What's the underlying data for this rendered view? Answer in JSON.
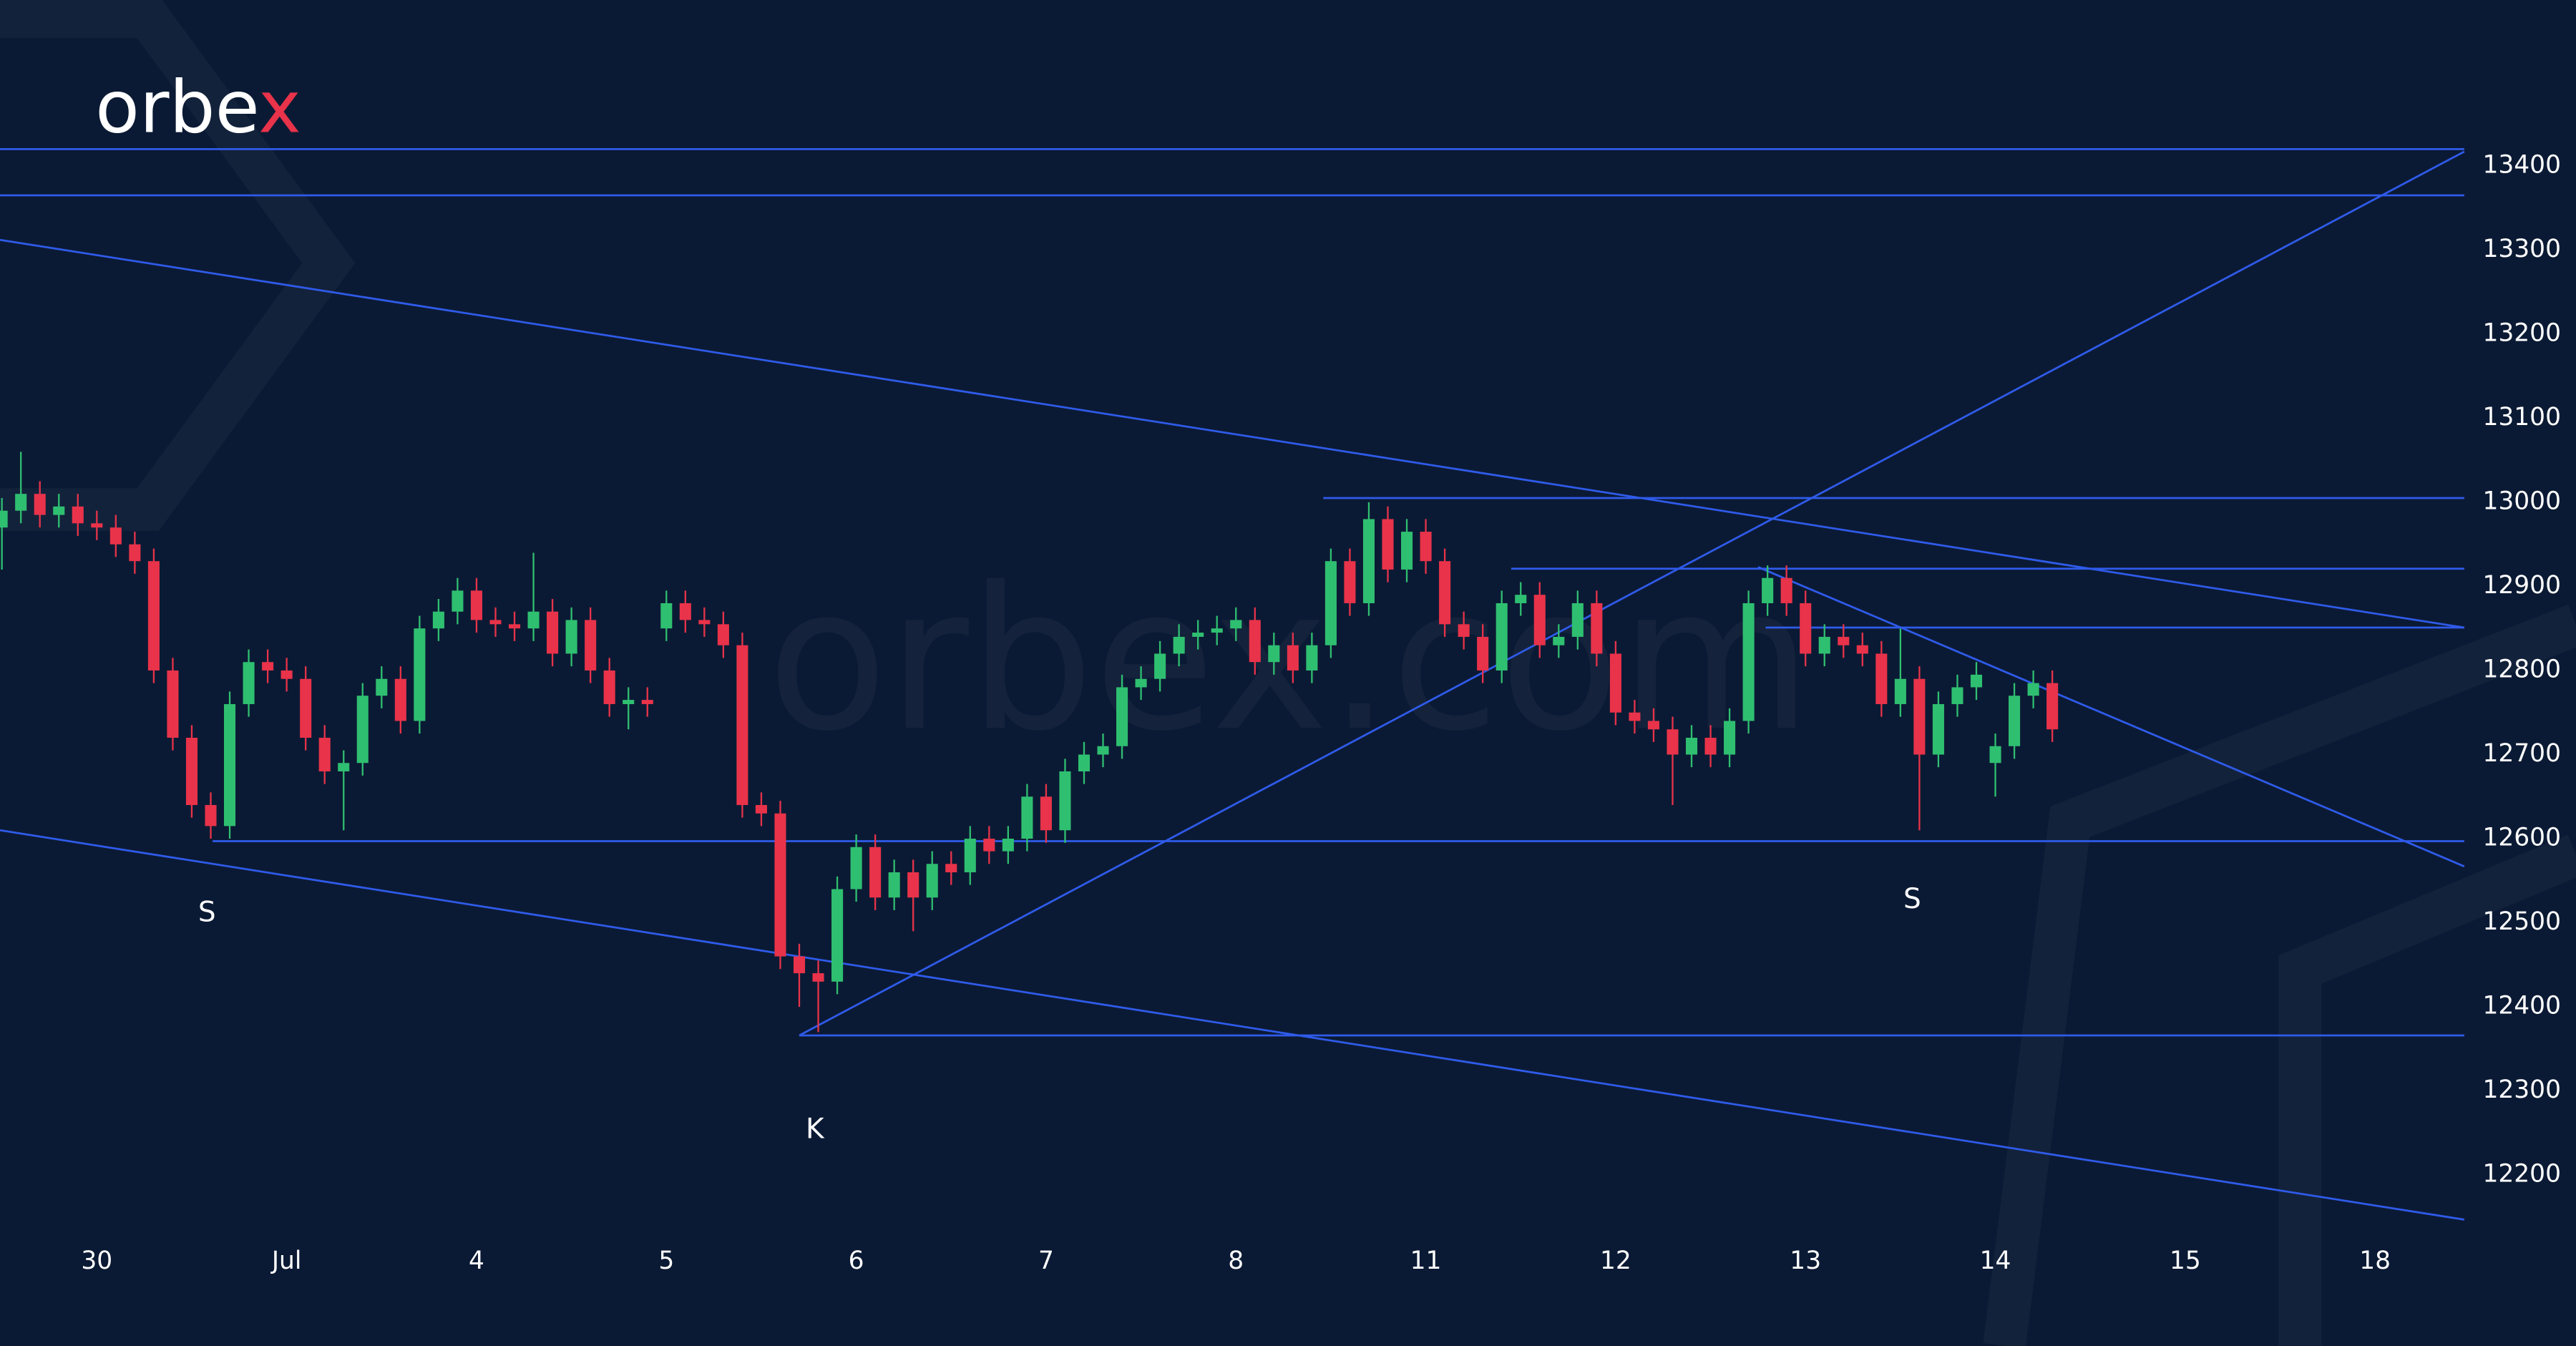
{
  "logo": "orbex",
  "watermark": "orbex.com",
  "chart_data": {
    "type": "candlestick",
    "xlim": [
      -0.51,
      12.47
    ],
    "ylim": [
      11997,
      13597
    ],
    "xticks": [
      {
        "value": 0,
        "label": "30"
      },
      {
        "value": 1,
        "label": "Jul"
      },
      {
        "value": 2,
        "label": "4"
      },
      {
        "value": 3,
        "label": "5"
      },
      {
        "value": 4,
        "label": "6"
      },
      {
        "value": 5,
        "label": "7"
      },
      {
        "value": 6,
        "label": "8"
      },
      {
        "value": 7,
        "label": "11"
      },
      {
        "value": 8,
        "label": "12"
      },
      {
        "value": 9,
        "label": "13"
      },
      {
        "value": 10,
        "label": "14"
      },
      {
        "value": 11,
        "label": "15"
      },
      {
        "value": 12,
        "label": "18"
      }
    ],
    "yticks": [
      12200,
      12300,
      12400,
      12500,
      12600,
      12700,
      12800,
      12900,
      13000,
      13100,
      13200,
      13300,
      13400
    ],
    "up_color": "#2fbf71",
    "down_color": "#e8334a",
    "line_color": "#2f5bea",
    "x": [
      -0.5,
      -0.4,
      -0.3,
      -0.2,
      -0.1,
      0,
      0.1,
      0.2,
      0.3,
      0.4,
      0.5,
      0.6,
      0.7,
      0.8,
      0.9,
      1,
      1.1,
      1.2,
      1.3,
      1.4,
      1.5,
      1.6,
      1.7,
      1.8,
      1.9,
      2,
      2.1,
      2.2,
      2.3,
      2.4,
      2.5,
      2.6,
      2.7,
      2.8,
      2.9,
      3,
      3.1,
      3.2,
      3.3,
      3.4,
      3.5,
      3.6,
      3.7,
      3.8,
      3.9,
      4,
      4.1,
      4.2,
      4.3,
      4.4,
      4.5,
      4.6,
      4.7,
      4.8,
      4.9,
      5,
      5.1,
      5.2,
      5.3,
      5.4,
      5.5,
      5.6,
      5.7,
      5.8,
      5.9,
      6,
      6.1,
      6.2,
      6.3,
      6.4,
      6.5,
      6.6,
      6.7,
      6.8,
      6.9,
      7,
      7.1,
      7.2,
      7.3,
      7.4,
      7.5,
      7.6,
      7.7,
      7.8,
      7.9,
      8,
      8.1,
      8.2,
      8.3,
      8.4,
      8.5,
      8.6,
      8.7,
      8.8,
      8.9,
      9,
      9.1,
      9.2,
      9.3,
      9.4,
      9.5,
      9.6,
      9.7,
      9.8,
      9.9,
      10,
      10.1,
      10.2,
      10.3
    ],
    "open": [
      12970,
      12990,
      13010,
      12985,
      12995,
      12975,
      12970,
      12950,
      12930,
      12800,
      12720,
      12640,
      12615,
      12760,
      12810,
      12800,
      12790,
      12720,
      12680,
      12690,
      12770,
      12790,
      12740,
      12850,
      12870,
      12895,
      12860,
      12855,
      12850,
      12870,
      12820,
      12860,
      12800,
      12760,
      12765,
      12850,
      12880,
      12860,
      12855,
      12830,
      12640,
      12630,
      12460,
      12440,
      12430,
      12540,
      12590,
      12530,
      12560,
      12530,
      12570,
      12560,
      12600,
      12585,
      12600,
      12650,
      12610,
      12680,
      12700,
      12710,
      12780,
      12790,
      12820,
      12840,
      12845,
      12850,
      12860,
      12810,
      12830,
      12800,
      12830,
      12930,
      12880,
      12980,
      12920,
      12965,
      12930,
      12855,
      12840,
      12800,
      12880,
      12890,
      12830,
      12840,
      12880,
      12820,
      12750,
      12740,
      12730,
      12700,
      12720,
      12700,
      12740,
      12880,
      12910,
      12880,
      12820,
      12840,
      12830,
      12820,
      12760,
      12790,
      12700,
      12760,
      12780,
      12690,
      12710,
      12770,
      12785
    ],
    "high": [
      13005,
      13060,
      13025,
      13010,
      13010,
      12990,
      12985,
      12965,
      12945,
      12815,
      12735,
      12655,
      12775,
      12825,
      12825,
      12815,
      12805,
      12735,
      12705,
      12785,
      12805,
      12805,
      12865,
      12885,
      12910,
      12910,
      12875,
      12870,
      12940,
      12885,
      12875,
      12875,
      12815,
      12780,
      12780,
      12895,
      12895,
      12875,
      12870,
      12845,
      12655,
      12645,
      12475,
      12455,
      12555,
      12605,
      12605,
      12575,
      12575,
      12585,
      12585,
      12615,
      12615,
      12615,
      12665,
      12665,
      12695,
      12715,
      12725,
      12795,
      12805,
      12835,
      12855,
      12860,
      12865,
      12875,
      12875,
      12845,
      12845,
      12845,
      12945,
      12945,
      13000,
      12995,
      12980,
      12980,
      12945,
      12870,
      12855,
      12895,
      12905,
      12905,
      12855,
      12895,
      12895,
      12835,
      12765,
      12755,
      12745,
      12735,
      12735,
      12755,
      12895,
      12925,
      12925,
      12895,
      12855,
      12855,
      12845,
      12835,
      12850,
      12805,
      12775,
      12795,
      12810,
      12725,
      12785,
      12800,
      12800
    ],
    "low": [
      12920,
      12975,
      12970,
      12970,
      12960,
      12955,
      12935,
      12915,
      12785,
      12705,
      12625,
      12600,
      12600,
      12745,
      12785,
      12775,
      12705,
      12665,
      12610,
      12675,
      12755,
      12725,
      12725,
      12835,
      12855,
      12845,
      12840,
      12835,
      12835,
      12805,
      12805,
      12785,
      12745,
      12730,
      12745,
      12835,
      12845,
      12840,
      12815,
      12625,
      12615,
      12445,
      12400,
      12370,
      12415,
      12525,
      12515,
      12515,
      12490,
      12515,
      12545,
      12545,
      12570,
      12570,
      12585,
      12595,
      12595,
      12665,
      12685,
      12695,
      12765,
      12775,
      12805,
      12825,
      12830,
      12835,
      12795,
      12795,
      12785,
      12785,
      12815,
      12865,
      12865,
      12905,
      12905,
      12915,
      12840,
      12825,
      12785,
      12785,
      12865,
      12815,
      12815,
      12825,
      12805,
      12735,
      12725,
      12715,
      12640,
      12685,
      12685,
      12685,
      12725,
      12865,
      12865,
      12805,
      12805,
      12815,
      12805,
      12745,
      12745,
      12610,
      12685,
      12745,
      12765,
      12650,
      12695,
      12755,
      12715
    ],
    "close": [
      12990,
      13010,
      12985,
      12995,
      12975,
      12970,
      12950,
      12930,
      12800,
      12720,
      12640,
      12615,
      12760,
      12810,
      12800,
      12790,
      12720,
      12680,
      12690,
      12770,
      12790,
      12740,
      12850,
      12870,
      12895,
      12860,
      12855,
      12850,
      12870,
      12820,
      12860,
      12800,
      12760,
      12765,
      12760,
      12880,
      12860,
      12855,
      12830,
      12640,
      12630,
      12460,
      12440,
      12430,
      12540,
      12590,
      12530,
      12560,
      12530,
      12570,
      12560,
      12600,
      12585,
      12600,
      12650,
      12610,
      12680,
      12700,
      12710,
      12780,
      12790,
      12820,
      12840,
      12845,
      12850,
      12860,
      12810,
      12830,
      12800,
      12830,
      12930,
      12880,
      12980,
      12920,
      12965,
      12930,
      12855,
      12840,
      12800,
      12880,
      12890,
      12830,
      12840,
      12880,
      12820,
      12750,
      12740,
      12730,
      12700,
      12720,
      12700,
      12740,
      12880,
      12910,
      12880,
      12820,
      12840,
      12830,
      12820,
      12760,
      12790,
      12700,
      12760,
      12780,
      12795,
      12710,
      12770,
      12785,
      12730
    ],
    "lines": [
      {
        "x": [
          -0.51,
          12.47
        ],
        "y": [
          13420,
          13420
        ]
      },
      {
        "x": [
          -0.51,
          12.47
        ],
        "y": [
          13365,
          13365
        ]
      },
      {
        "x": [
          -0.51,
          12.47
        ],
        "y": [
          13312,
          12851
        ]
      },
      {
        "x": [
          -0.51,
          12.47
        ],
        "y": [
          12610,
          12147
        ]
      },
      {
        "x": [
          6.46,
          12.47
        ],
        "y": [
          13005,
          13005
        ]
      },
      {
        "x": [
          7.45,
          12.47
        ],
        "y": [
          12921,
          12921
        ]
      },
      {
        "x": [
          8.79,
          12.47
        ],
        "y": [
          12851,
          12851
        ]
      },
      {
        "x": [
          0.61,
          12.47
        ],
        "y": [
          12597,
          12597
        ]
      },
      {
        "x": [
          3.7,
          12.47
        ],
        "y": [
          12366,
          12366
        ]
      },
      {
        "x": [
          3.7,
          12.47
        ],
        "y": [
          12366,
          13417
        ]
      },
      {
        "x": [
          8.75,
          12.47
        ],
        "y": [
          12923,
          12567
        ]
      }
    ],
    "annotations": [
      "S",
      "S",
      "K"
    ]
  }
}
